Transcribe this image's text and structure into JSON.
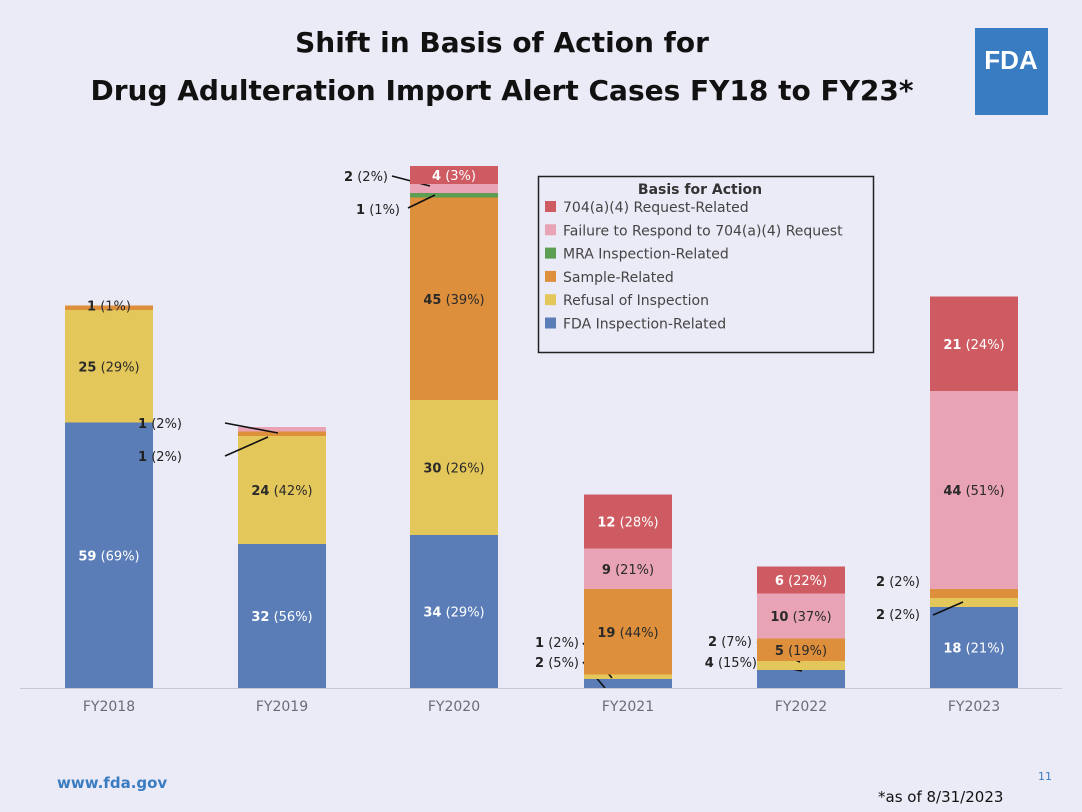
{
  "slide": {
    "title_line1": "Shift in Basis of Action for",
    "title_line2": "Drug Adulteration Import Alert Cases FY18 to FY23*",
    "logo_text": "FDA",
    "website": "www.fda.gov",
    "page_number": "11",
    "footnote": "*as of 8/31/2023"
  },
  "chart_data": {
    "type": "bar",
    "stacked": true,
    "categories": [
      "FY2018",
      "FY2019",
      "FY2020",
      "FY2021",
      "FY2022",
      "FY2023"
    ],
    "legend_title": "Basis for Action",
    "legend_placement": "top-center",
    "series": [
      {
        "name": "FDA Inspection-Related",
        "color": "#5a7db8",
        "values": [
          59,
          32,
          34,
          2,
          4,
          18
        ],
        "pct": [
          69,
          56,
          29,
          5,
          15,
          21
        ]
      },
      {
        "name": "Refusal of Inspection",
        "color": "#e4c75a",
        "values": [
          25,
          24,
          30,
          1,
          2,
          2
        ],
        "pct": [
          29,
          42,
          26,
          2,
          7,
          2
        ]
      },
      {
        "name": "Sample-Related",
        "color": "#de8f3c",
        "values": [
          1,
          1,
          45,
          19,
          5,
          2
        ],
        "pct": [
          1,
          2,
          39,
          44,
          19,
          2
        ]
      },
      {
        "name": "MRA Inspection-Related",
        "color": "#5c9e52",
        "values": [
          0,
          0,
          1,
          0,
          0,
          0
        ],
        "pct": [
          0,
          0,
          1,
          0,
          0,
          0
        ]
      },
      {
        "name": "Failure to Respond to 704(a)(4) Request",
        "color": "#e8a3b5",
        "values": [
          0,
          1,
          2,
          9,
          10,
          44
        ],
        "pct": [
          0,
          2,
          2,
          21,
          37,
          51
        ]
      },
      {
        "name": "704(a)(4) Request-Related",
        "color": "#cf5b62",
        "values": [
          0,
          0,
          4,
          12,
          6,
          21
        ],
        "pct": [
          0,
          0,
          3,
          28,
          22,
          24
        ]
      }
    ],
    "legend_order": [
      5,
      4,
      3,
      2,
      1,
      0
    ],
    "grid": false,
    "ylim": [
      0,
      120
    ]
  }
}
